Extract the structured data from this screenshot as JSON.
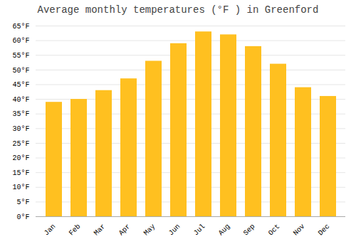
{
  "chart_data": {
    "type": "bar",
    "title": "Average monthly temperatures (°F ) in Greenford",
    "categories": [
      "Jan",
      "Feb",
      "Mar",
      "Apr",
      "May",
      "Jun",
      "Jul",
      "Aug",
      "Sep",
      "Oct",
      "Nov",
      "Dec"
    ],
    "values": [
      39,
      40,
      43,
      47,
      53,
      59,
      63,
      62,
      58,
      52,
      44,
      41
    ],
    "color": "#FFC020",
    "ylim": [
      0,
      65
    ],
    "yticks": [
      {
        "value": 0,
        "label": "0°F"
      },
      {
        "value": 5,
        "label": "5°F"
      },
      {
        "value": 10,
        "label": "10°F"
      },
      {
        "value": 15,
        "label": "15°F"
      },
      {
        "value": 20,
        "label": "20°F"
      },
      {
        "value": 25,
        "label": "25°F"
      },
      {
        "value": 30,
        "label": "30°F"
      },
      {
        "value": 35,
        "label": "35°F"
      },
      {
        "value": 40,
        "label": "40°F"
      },
      {
        "value": 45,
        "label": "45°F"
      },
      {
        "value": 50,
        "label": "50°F"
      },
      {
        "value": 55,
        "label": "55°F"
      },
      {
        "value": 60,
        "label": "60°F"
      },
      {
        "value": 65,
        "label": "65°F"
      }
    ],
    "grid": true
  }
}
